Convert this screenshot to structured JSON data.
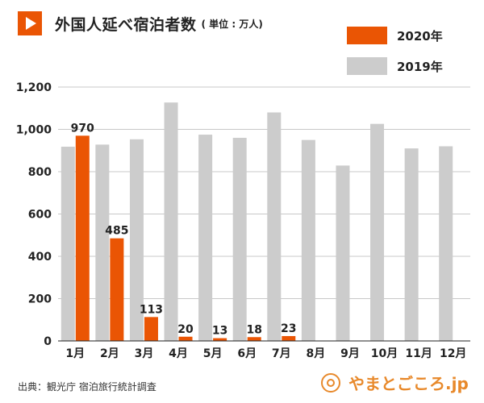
{
  "header": {
    "title": "外国人延べ宿泊者数",
    "unit": "( 単位 : 万人)",
    "icon": "play-icon"
  },
  "chart_data": {
    "type": "bar",
    "title": "外国人延べ宿泊者数",
    "unit_label": "( 単位 : 万人)",
    "xlabel": "",
    "ylabel": "",
    "ylim": [
      0,
      1200
    ],
    "yticks": [
      0,
      200,
      400,
      600,
      800,
      1000,
      1200
    ],
    "ytick_labels": [
      "0",
      "200",
      "400",
      "600",
      "800",
      "1,000",
      "1,200"
    ],
    "grid": true,
    "legend_position": "top-right",
    "categories": [
      "1月",
      "2月",
      "3月",
      "4月",
      "5月",
      "6月",
      "7月",
      "8月",
      "9月",
      "10月",
      "11月",
      "12月"
    ],
    "series": [
      {
        "name": "2019年",
        "color": "#cccccc",
        "values": [
          918,
          928,
          953,
          1127,
          975,
          960,
          1080,
          950,
          829,
          1026,
          910,
          920
        ],
        "show_labels": false
      },
      {
        "name": "2020年",
        "color": "#ea5504",
        "values": [
          970,
          485,
          113,
          20,
          13,
          18,
          23,
          null,
          null,
          null,
          null,
          null
        ],
        "show_labels": true
      }
    ]
  },
  "footer": {
    "source": "出典：観光庁 宿泊旅行統計調査",
    "logo_text": "やまとごころ.jp"
  }
}
